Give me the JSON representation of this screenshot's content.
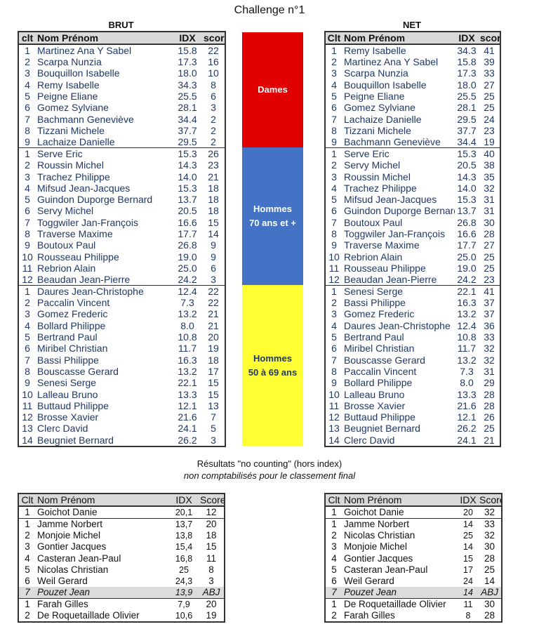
{
  "title": "Challenge n°1",
  "brut": {
    "label": "BRUT",
    "headers": [
      "clt",
      "Nom Prénom",
      "IDX",
      "score"
    ],
    "groups": [
      [
        [
          "1",
          "Martinez Ana Y Sabel",
          "15.8",
          "22"
        ],
        [
          "2",
          "Scarpa Nunzia",
          "17.3",
          "16"
        ],
        [
          "3",
          "Bouquillon Isabelle",
          "18.0",
          "10"
        ],
        [
          "4",
          "Remy Isabelle",
          "34.3",
          "8"
        ],
        [
          "5",
          "Peigne Eliane",
          "25.5",
          "6"
        ],
        [
          "6",
          "Gomez Sylviane",
          "28.1",
          "3"
        ],
        [
          "7",
          "Bachmann Geneviève",
          "34.4",
          "2"
        ],
        [
          "8",
          "Tizzani Michele",
          "37.7",
          "2"
        ],
        [
          "9",
          "Lachaize Danielle",
          "29.5",
          "2"
        ]
      ],
      [
        [
          "1",
          "Serve Eric",
          "15.3",
          "26"
        ],
        [
          "2",
          "Roussin Michel",
          "14.3",
          "23"
        ],
        [
          "3",
          "Trachez Philippe",
          "14.0",
          "21"
        ],
        [
          "4",
          "Mifsud Jean-Jacques",
          "15.3",
          "18"
        ],
        [
          "5",
          "Guindon Duporge Bernard",
          "13.7",
          "18"
        ],
        [
          "6",
          "Servy Michel",
          "20.5",
          "18"
        ],
        [
          "7",
          "Toggwiler Jan-François",
          "16.6",
          "15"
        ],
        [
          "8",
          "Traverse Maxime",
          "17.7",
          "14"
        ],
        [
          "9",
          "Boutoux Paul",
          "26.8",
          "9"
        ],
        [
          "10",
          "Rousseau Philippe",
          "19.0",
          "9"
        ],
        [
          "11",
          "Rebrion Alain",
          "25.0",
          "6"
        ],
        [
          "12",
          "Beaudan Jean-Pierre",
          "24.2",
          "3"
        ]
      ],
      [
        [
          "1",
          "Daures Jean-Christophe",
          "12.4",
          "22"
        ],
        [
          "2",
          "Paccalin Vincent",
          "7.3",
          "22"
        ],
        [
          "3",
          "Gomez Frederic",
          "13.2",
          "21"
        ],
        [
          "4",
          "Bollard Philippe",
          "8.0",
          "21"
        ],
        [
          "5",
          "Bertrand Paul",
          "10.8",
          "20"
        ],
        [
          "6",
          "Miribel Christian",
          "11.7",
          "19"
        ],
        [
          "7",
          "Bassi Philippe",
          "16.3",
          "18"
        ],
        [
          "8",
          "Bouscasse Gerard",
          "13.2",
          "17"
        ],
        [
          "9",
          "Senesi Serge",
          "22.1",
          "15"
        ],
        [
          "10",
          "Lalleau Bruno",
          "13.3",
          "15"
        ],
        [
          "11",
          "Buttaud Philippe",
          "12.1",
          "13"
        ],
        [
          "12",
          "Brosse Xavier",
          "21.6",
          "7"
        ],
        [
          "13",
          "Clerc David",
          "24.1",
          "5"
        ],
        [
          "14",
          "Beugniet Bernard",
          "26.2",
          "3"
        ]
      ]
    ]
  },
  "net": {
    "label": "NET",
    "headers": [
      "Clt",
      "Nom Prénom",
      "IDX",
      "score"
    ],
    "groups": [
      [
        [
          "1",
          "Remy Isabelle",
          "34.3",
          "41"
        ],
        [
          "2",
          "Martinez Ana Y Sabel",
          "15.8",
          "39"
        ],
        [
          "3",
          "Scarpa Nunzia",
          "17.3",
          "33"
        ],
        [
          "4",
          "Bouquillon Isabelle",
          "18.0",
          "27"
        ],
        [
          "5",
          "Peigne Eliane",
          "25.5",
          "25"
        ],
        [
          "6",
          "Gomez Sylviane",
          "28.1",
          "25"
        ],
        [
          "7",
          "Lachaize Danielle",
          "29.5",
          "24"
        ],
        [
          "8",
          "Tizzani Michele",
          "37.7",
          "23"
        ],
        [
          "9",
          "Bachmann Geneviève",
          "34.4",
          "19"
        ]
      ],
      [
        [
          "1",
          "Serve Eric",
          "15.3",
          "40"
        ],
        [
          "2",
          "Servy Michel",
          "20.5",
          "38"
        ],
        [
          "3",
          "Roussin Michel",
          "14.3",
          "35"
        ],
        [
          "4",
          "Trachez Philippe",
          "14.0",
          "32"
        ],
        [
          "5",
          "Mifsud Jean-Jacques",
          "15.3",
          "31"
        ],
        [
          "6",
          "Guindon Duporge Bernard",
          "13.7",
          "31"
        ],
        [
          "7",
          "Boutoux Paul",
          "26.8",
          "30"
        ],
        [
          "8",
          "Toggwiler Jan-François",
          "16.6",
          "28"
        ],
        [
          "9",
          "Traverse Maxime",
          "17.7",
          "27"
        ],
        [
          "10",
          "Rebrion Alain",
          "25.0",
          "25"
        ],
        [
          "11",
          "Rousseau Philippe",
          "19.0",
          "25"
        ],
        [
          "12",
          "Beaudan Jean-Pierre",
          "24.2",
          "23"
        ]
      ],
      [
        [
          "1",
          "Senesi Serge",
          "22.1",
          "41"
        ],
        [
          "2",
          "Bassi Philippe",
          "16.3",
          "37"
        ],
        [
          "3",
          "Gomez Frederic",
          "13.2",
          "37"
        ],
        [
          "4",
          "Daures Jean-Christophe",
          "12.4",
          "36"
        ],
        [
          "5",
          "Bertrand Paul",
          "10.8",
          "33"
        ],
        [
          "6",
          "Miribel Christian",
          "11.7",
          "32"
        ],
        [
          "7",
          "Bouscasse Gerard",
          "13.2",
          "32"
        ],
        [
          "8",
          "Paccalin Vincent",
          "7.3",
          "31"
        ],
        [
          "9",
          "Bollard Philippe",
          "8.0",
          "29"
        ],
        [
          "10",
          "Lalleau Bruno",
          "13.3",
          "28"
        ],
        [
          "11",
          "Brosse Xavier",
          "21.6",
          "28"
        ],
        [
          "12",
          "Buttaud Philippe",
          "12.1",
          "26"
        ],
        [
          "13",
          "Beugniet Bernard",
          "26.2",
          "25"
        ],
        [
          "14",
          "Clerc David",
          "24.1",
          "21"
        ]
      ]
    ]
  },
  "categories": [
    {
      "label": "Dames",
      "color": "#e00000",
      "text_color": "#ffffff"
    },
    {
      "label": "Hommes\n70 ans et +",
      "color": "#4472c4",
      "text_color": "#ffffff"
    },
    {
      "label": "Hommes\n50 à 69 ans",
      "color": "#ffff33",
      "text_color": "#1f3864"
    }
  ],
  "no_counting": {
    "title": "Résultats \"no counting\" (hors index)",
    "subtitle": "non comptabilisés pour le classement final",
    "left": {
      "headers": [
        "Clt",
        "Nom Prénom",
        "IDX",
        "Score"
      ],
      "groups": [
        [
          [
            "1",
            "Goichot Danie",
            "20,1",
            "12"
          ]
        ],
        [
          [
            "1",
            "Jamme Norbert",
            "13,7",
            "20"
          ],
          [
            "2",
            "Monjoie Michel",
            "13,8",
            "18"
          ],
          [
            "3",
            "Gontier Jacques",
            "15,4",
            "15"
          ],
          [
            "4",
            "Casteran Jean-Paul",
            "16,8",
            "11"
          ],
          [
            "5",
            "Nicolas Christian",
            "25",
            "8"
          ],
          [
            "6",
            "Weil Gerard",
            "24,3",
            "3"
          ],
          [
            "7",
            "Pouzet Jean",
            "13,9",
            "ABJ"
          ]
        ],
        [
          [
            "1",
            "Farah Gilles",
            "7,9",
            "20"
          ],
          [
            "2",
            "De Roquetaillade Olivier",
            "10,6",
            "19"
          ]
        ]
      ]
    },
    "right": {
      "headers": [
        "Clt",
        "Nom Prénom",
        "IDX",
        "Score"
      ],
      "groups": [
        [
          [
            "1",
            "Goichot Danie",
            "20",
            "32"
          ]
        ],
        [
          [
            "1",
            "Jamme Norbert",
            "14",
            "33"
          ],
          [
            "2",
            "Nicolas Christian",
            "25",
            "32"
          ],
          [
            "3",
            "Monjoie Michel",
            "14",
            "30"
          ],
          [
            "4",
            "Gontier Jacques",
            "15",
            "28"
          ],
          [
            "5",
            "Casteran Jean-Paul",
            "17",
            "25"
          ],
          [
            "6",
            "Weil Gerard",
            "24",
            "14"
          ],
          [
            "7",
            "Pouzet Jean",
            "14",
            "ABJ"
          ]
        ],
        [
          [
            "1",
            "De Roquetaillade Olivier",
            "11",
            "30"
          ],
          [
            "2",
            "Farah Gilles",
            "8",
            "28"
          ]
        ]
      ]
    }
  }
}
